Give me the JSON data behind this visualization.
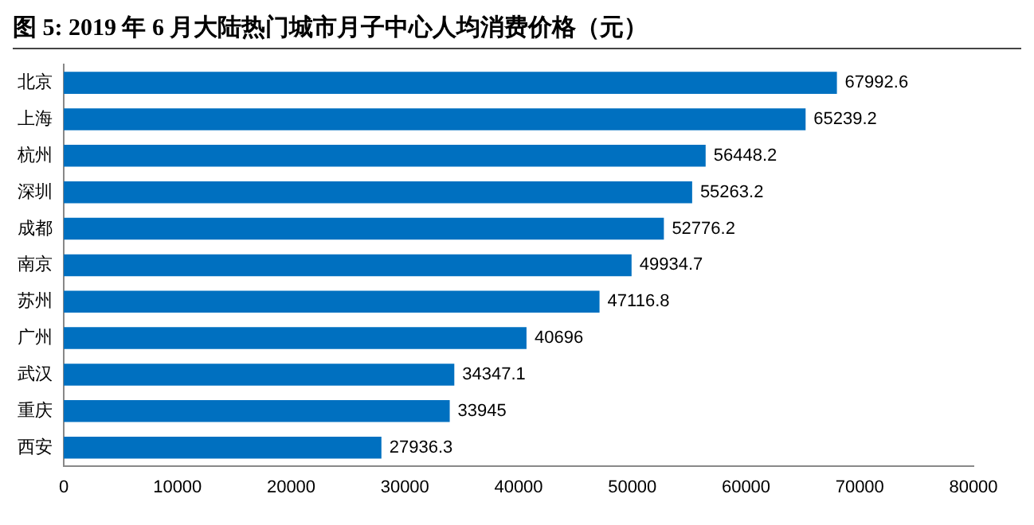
{
  "chart_data": {
    "type": "bar",
    "orientation": "horizontal",
    "title": "图 5:  2019 年 6 月大陆热门城市月子中心人均消费价格（元）",
    "categories": [
      "北京",
      "上海",
      "杭州",
      "深圳",
      "成都",
      "南京",
      "苏州",
      "广州",
      "武汉",
      "重庆",
      "西安"
    ],
    "values": [
      67992.6,
      65239.2,
      56448.2,
      55263.2,
      52776.2,
      49934.7,
      47116.8,
      40696,
      34347.1,
      33945,
      27936.3
    ],
    "color": "#0070c0",
    "xlim": [
      0,
      80000
    ],
    "xticks": [
      0,
      10000,
      20000,
      30000,
      40000,
      50000,
      60000,
      70000,
      80000
    ],
    "grid": false,
    "legend": false,
    "data_labels": true
  }
}
